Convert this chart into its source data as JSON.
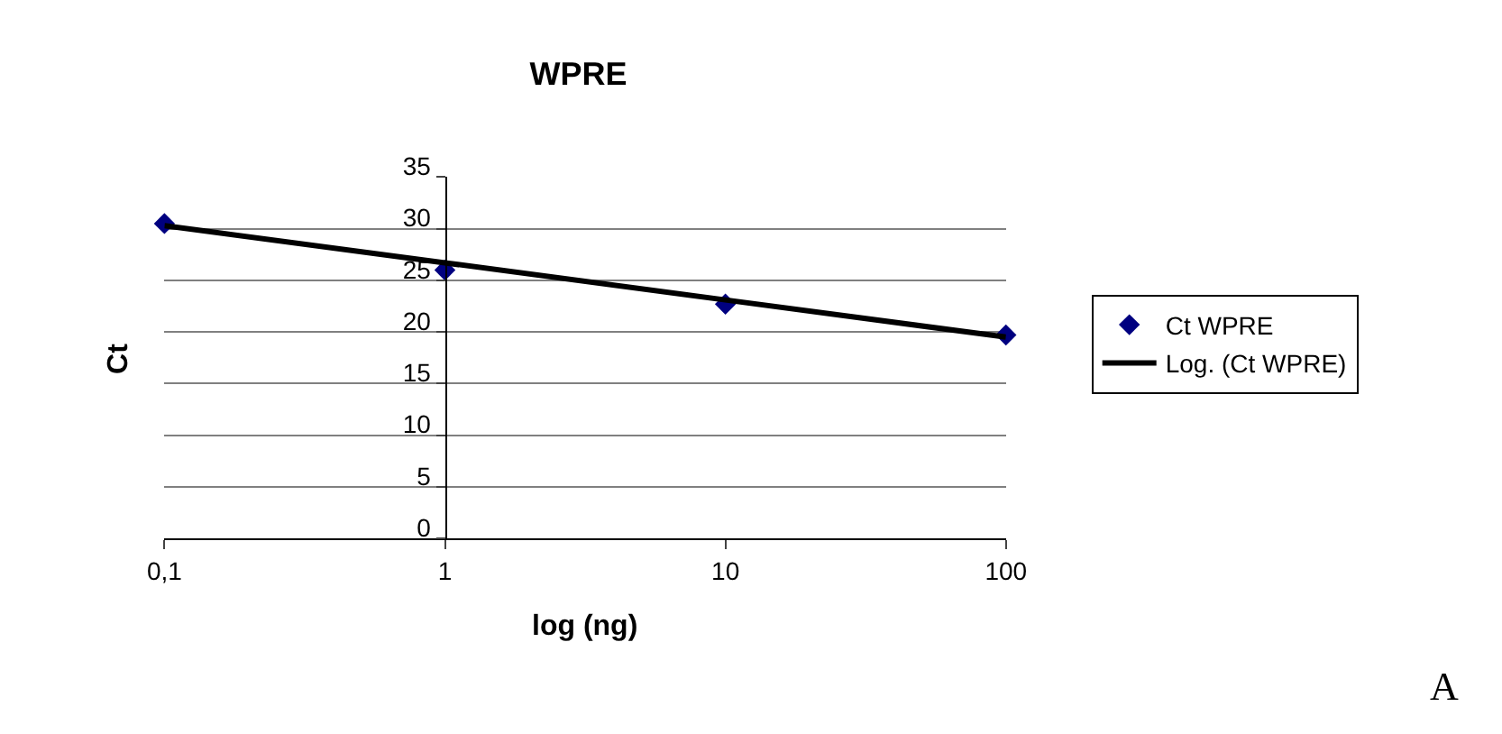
{
  "chart_data": {
    "type": "scatter",
    "title": "WPRE",
    "xlabel": "log (ng)",
    "ylabel": "Ct",
    "log": "x",
    "xlim": [
      0.1,
      100
    ],
    "xticks": [
      {
        "value": 0.1,
        "label": "0,1"
      },
      1,
      10,
      100
    ],
    "ylim": [
      0,
      35
    ],
    "yticks": [
      0,
      5,
      10,
      15,
      20,
      25,
      30,
      35
    ],
    "grid": "y",
    "legend": "right",
    "series": [
      {
        "name": "Ct WPRE",
        "marker": "diamond",
        "color": "#000080",
        "x": [
          0.1,
          1,
          10,
          100
        ],
        "values": [
          30.5,
          26,
          22.7,
          19.7
        ]
      },
      {
        "name": "Log. (Ct WPRE)",
        "type": "line",
        "color": "#000000",
        "line_style": "solid",
        "x": [
          0.1,
          1,
          10,
          100
        ],
        "values": [
          30.3,
          26.7,
          23.1,
          19.5
        ]
      }
    ],
    "annotations": [
      "A"
    ]
  }
}
